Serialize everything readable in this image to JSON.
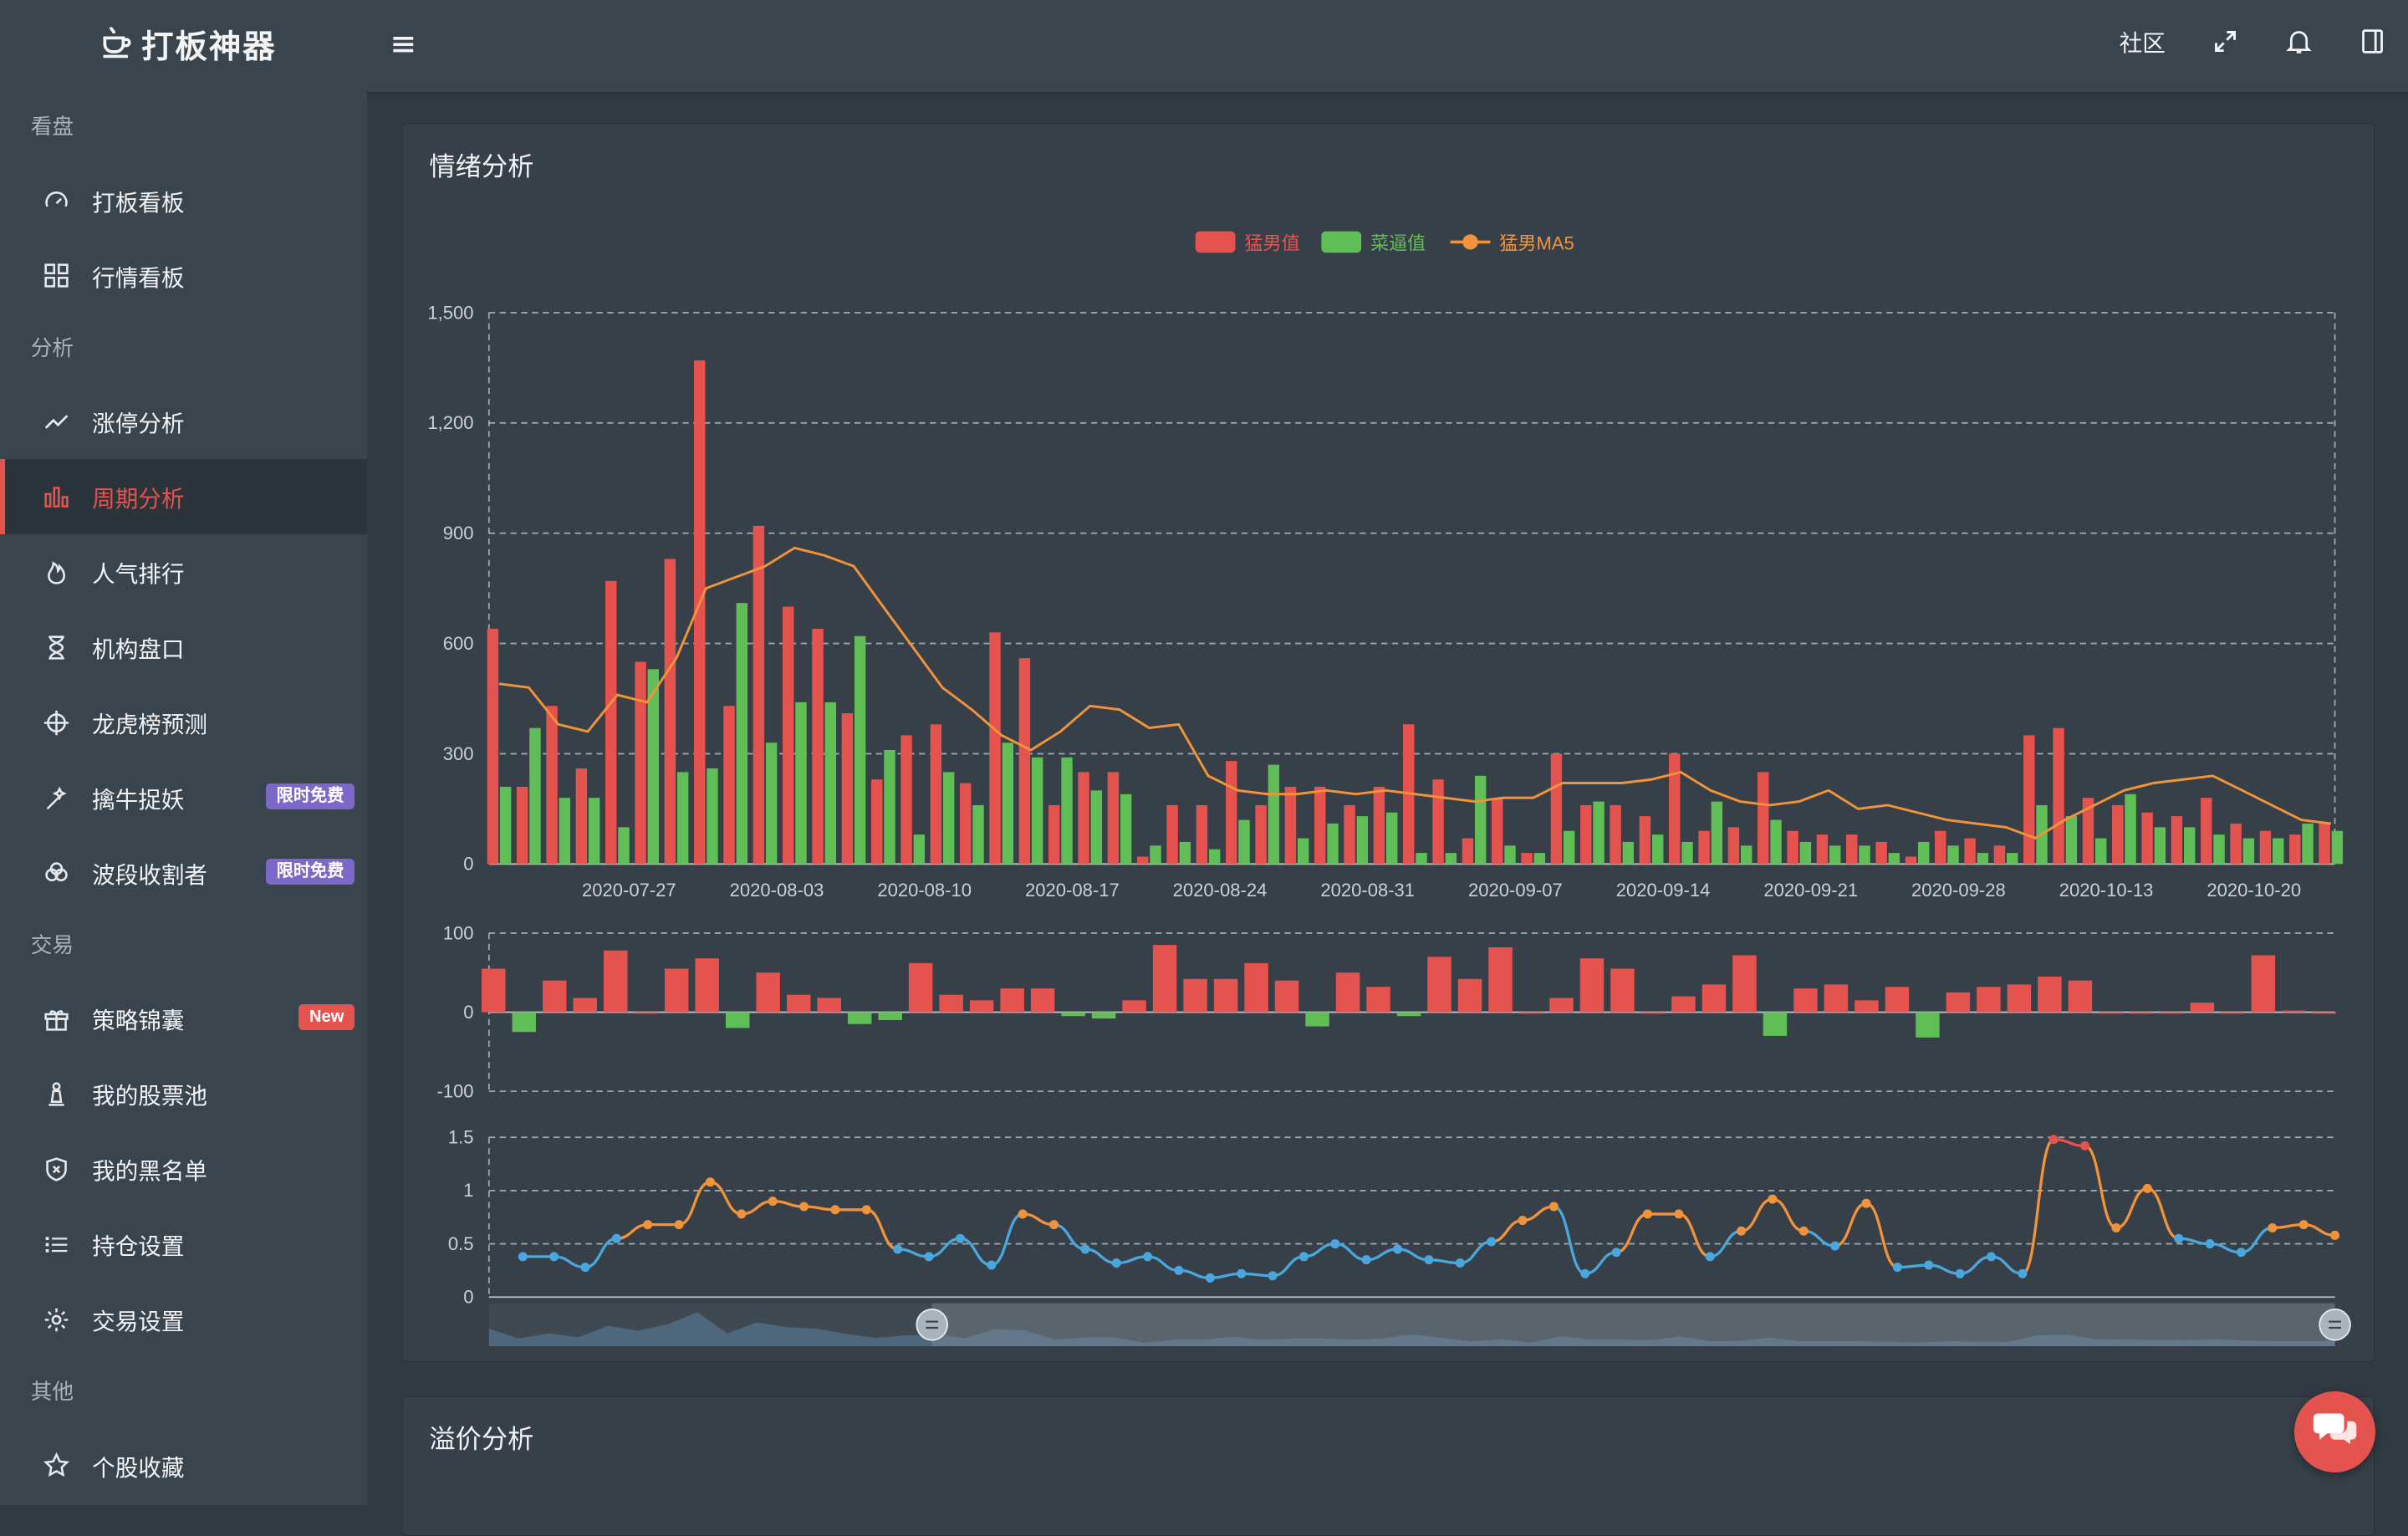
{
  "brand": {
    "name": "打板神器"
  },
  "header": {
    "community_label": "社区"
  },
  "sidebar": {
    "sections": [
      {
        "label": "看盘",
        "items": [
          {
            "label": "打板看板",
            "icon": "gauge-icon"
          },
          {
            "label": "行情看板",
            "icon": "grid-icon"
          }
        ]
      },
      {
        "label": "分析",
        "items": [
          {
            "label": "涨停分析",
            "icon": "trend-line-icon"
          },
          {
            "label": "周期分析",
            "icon": "bar-chart-icon",
            "active": true
          },
          {
            "label": "人气排行",
            "icon": "flame-icon"
          },
          {
            "label": "机构盘口",
            "icon": "hourglass-icon"
          },
          {
            "label": "龙虎榜预测",
            "icon": "crosshair-icon"
          },
          {
            "label": "擒牛捉妖",
            "icon": "wand-icon",
            "badge": "限时免费",
            "badge_color": "#7b68c8"
          },
          {
            "label": "波段收割者",
            "icon": "knot-icon",
            "badge": "限时免费",
            "badge_color": "#7b68c8"
          }
        ]
      },
      {
        "label": "交易",
        "items": [
          {
            "label": "策略锦囊",
            "icon": "gift-icon",
            "badge": "New",
            "badge_color": "#e5534f"
          },
          {
            "label": "我的股票池",
            "icon": "chess-pawn-icon"
          },
          {
            "label": "我的黑名单",
            "icon": "shield-x-icon"
          },
          {
            "label": "持仓设置",
            "icon": "list-icon"
          },
          {
            "label": "交易设置",
            "icon": "gear-icon"
          }
        ]
      },
      {
        "label": "其他",
        "items": [
          {
            "label": "个股收藏",
            "icon": "star-icon"
          }
        ]
      }
    ]
  },
  "cards": {
    "emotion_title": "情绪分析",
    "premium_title": "溢价分析"
  },
  "colors": {
    "red": "#e5534f",
    "green": "#5fbe55",
    "orange": "#f0933a",
    "blue": "#4aa7dd"
  },
  "chart_data": [
    {
      "type": "bar",
      "series": [
        {
          "name": "猛男值",
          "type": "bar",
          "color": "#e5534f",
          "values": [
            640,
            210,
            430,
            260,
            770,
            550,
            830,
            1370,
            430,
            920,
            700,
            640,
            410,
            230,
            350,
            380,
            220,
            630,
            560,
            160,
            250,
            250,
            20,
            160,
            160,
            280,
            160,
            210,
            210,
            160,
            210,
            380,
            230,
            70,
            180,
            30,
            300,
            160,
            160,
            130,
            300,
            90,
            100,
            250,
            90,
            80,
            80,
            60,
            20,
            90,
            70,
            50,
            350,
            370,
            180,
            160,
            140,
            130,
            180,
            110,
            90,
            80,
            110
          ]
        },
        {
          "name": "菜逼值",
          "type": "bar",
          "color": "#5fbe55",
          "values": [
            210,
            370,
            180,
            180,
            100,
            530,
            250,
            260,
            710,
            330,
            440,
            440,
            620,
            310,
            80,
            250,
            160,
            330,
            290,
            290,
            200,
            190,
            50,
            60,
            40,
            120,
            270,
            70,
            110,
            130,
            140,
            30,
            30,
            240,
            50,
            30,
            90,
            170,
            60,
            80,
            60,
            170,
            50,
            120,
            60,
            50,
            50,
            30,
            60,
            50,
            30,
            30,
            160,
            130,
            70,
            190,
            100,
            100,
            80,
            70,
            70,
            110,
            90
          ]
        },
        {
          "name": "猛男MA5",
          "type": "line",
          "color": "#f0933a",
          "values": [
            490,
            480,
            380,
            360,
            460,
            440,
            560,
            750,
            780,
            810,
            860,
            840,
            810,
            700,
            590,
            480,
            420,
            350,
            310,
            360,
            430,
            420,
            370,
            380,
            240,
            200,
            190,
            190,
            200,
            190,
            200,
            190,
            180,
            170,
            180,
            180,
            220,
            220,
            220,
            230,
            250,
            200,
            170,
            160,
            170,
            200,
            150,
            160,
            140,
            120,
            110,
            100,
            70,
            120,
            160,
            200,
            220,
            230,
            240,
            200,
            160,
            120,
            110
          ]
        }
      ],
      "x_ticks": [
        "2020-07-27",
        "2020-08-03",
        "2020-08-10",
        "2020-08-17",
        "2020-08-24",
        "2020-08-31",
        "2020-09-07",
        "2020-09-14",
        "2020-09-21",
        "2020-09-28",
        "2020-10-13",
        "2020-10-20"
      ],
      "y_ticks": [
        "0",
        "300",
        "600",
        "900",
        "1,200",
        "1,500"
      ],
      "ylim": [
        0,
        1500
      ],
      "legend": "top-center",
      "grid": true
    },
    {
      "type": "bar",
      "name_hidden": true,
      "values": [
        55,
        -25,
        40,
        18,
        78,
        0,
        55,
        68,
        -20,
        50,
        22,
        18,
        -15,
        -10,
        62,
        22,
        15,
        30,
        30,
        -5,
        -8,
        15,
        85,
        42,
        42,
        62,
        40,
        -18,
        50,
        32,
        -5,
        70,
        42,
        82,
        0,
        18,
        68,
        55,
        0,
        20,
        35,
        72,
        -30,
        30,
        35,
        15,
        32,
        -32,
        25,
        32,
        35,
        45,
        40,
        0,
        0,
        0,
        12,
        0,
        72,
        2,
        0
      ],
      "y_ticks": [
        "-100",
        "0",
        "100"
      ],
      "ylim": [
        -100,
        100
      ]
    },
    {
      "type": "line",
      "values": [
        0.38,
        0.38,
        0.28,
        0.55,
        0.68,
        0.68,
        1.08,
        0.78,
        0.9,
        0.85,
        0.82,
        0.82,
        0.45,
        0.38,
        0.55,
        0.3,
        0.78,
        0.68,
        0.45,
        0.32,
        0.38,
        0.25,
        0.18,
        0.22,
        0.2,
        0.38,
        0.5,
        0.35,
        0.45,
        0.35,
        0.32,
        0.52,
        0.72,
        0.85,
        0.22,
        0.42,
        0.78,
        0.78,
        0.38,
        0.62,
        0.92,
        0.62,
        0.48,
        0.88,
        0.28,
        0.3,
        0.22,
        0.38,
        0.22,
        1.48,
        1.42,
        0.65,
        1.02,
        0.55,
        0.5,
        0.42,
        0.65,
        0.68,
        0.58
      ],
      "y_ticks": [
        "0",
        "0.5",
        "1",
        "1.5"
      ],
      "ylim": [
        0,
        1.5
      ],
      "colors": {
        "low": "#4aa7dd",
        "mid": "#f0933a",
        "high": "#e5534f"
      }
    }
  ],
  "slider": {
    "start": 0.24,
    "end": 1.0
  }
}
